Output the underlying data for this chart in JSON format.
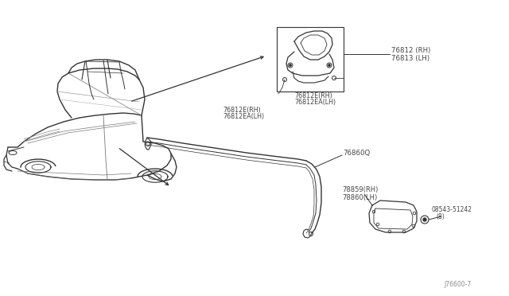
{
  "bg_color": "#ffffff",
  "line_color": "#333333",
  "text_color": "#444444",
  "fig_width": 6.4,
  "fig_height": 3.72,
  "watermark": "J76600-7",
  "parts": {
    "upper_bracket": {
      "label1": "76812 (RH)",
      "label2": "76813 (LH)",
      "label3a": "76812E(RH)",
      "label3b": "76812EA(LH)",
      "label4a": "76812E(RH)",
      "label4b": "76812EA(LH)"
    },
    "molding": {
      "label": "76860Q"
    },
    "lower_bracket": {
      "label1": "78859(RH)",
      "label2": "78860(LH)",
      "bolt_label1": "08543-51242",
      "bolt_label2": "(8)"
    }
  }
}
